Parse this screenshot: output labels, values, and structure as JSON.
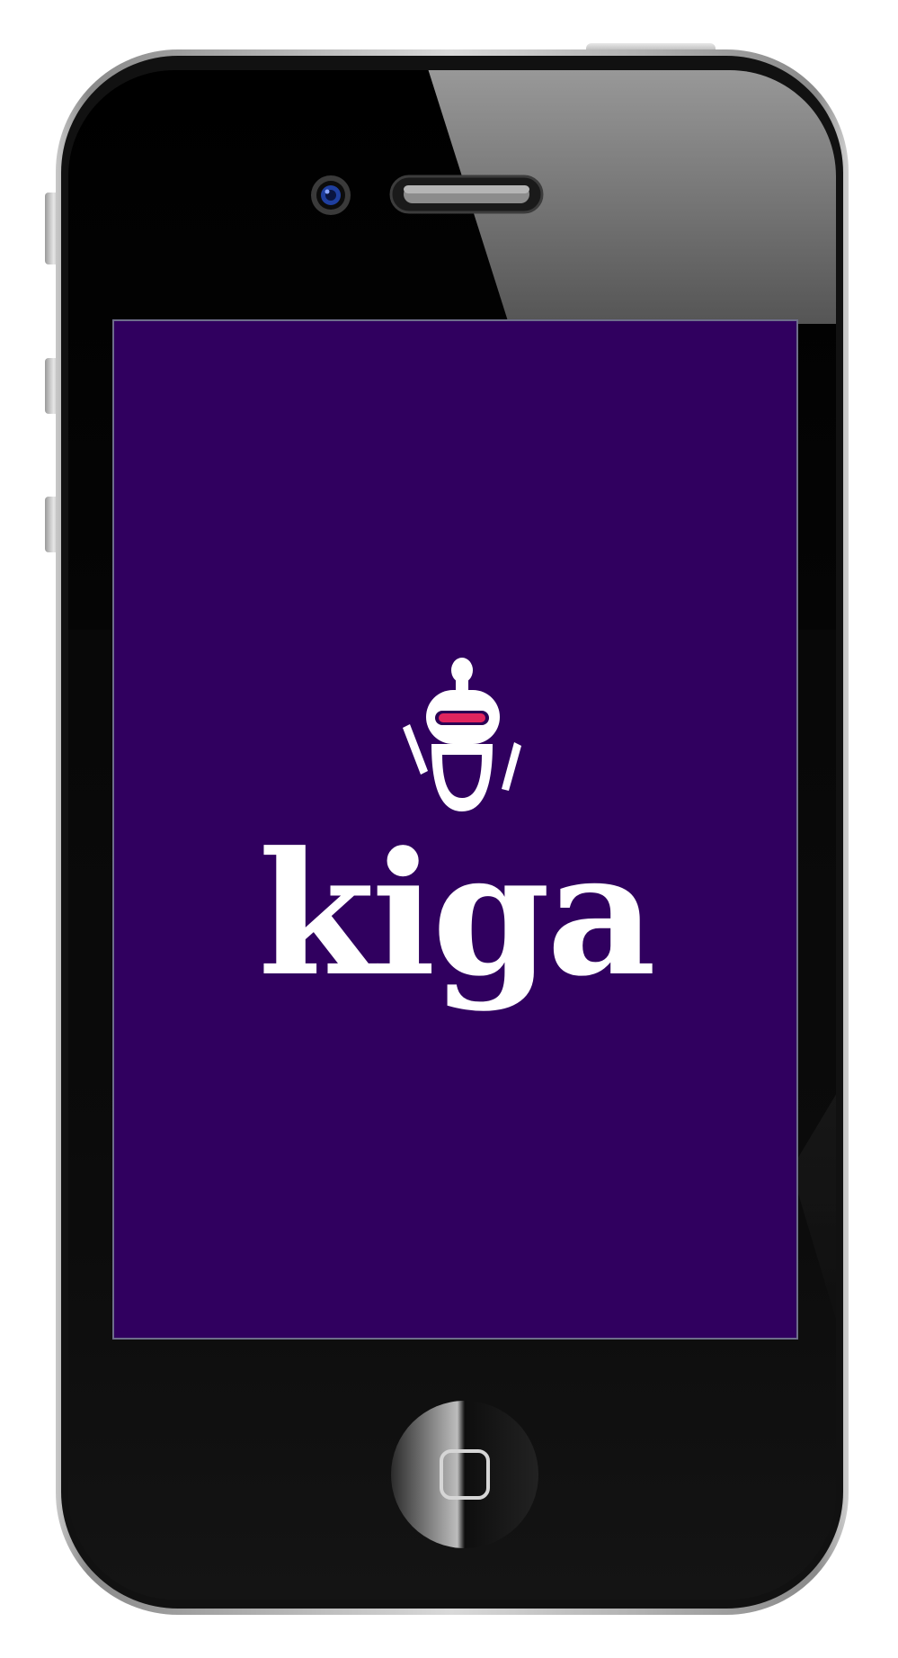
{
  "app": {
    "wordmark": "kiga",
    "logo_icon": "robot-icon",
    "background_color": "#30005f",
    "accent_color": "#e0245e",
    "logo_color": "#ffffff"
  },
  "device": {
    "camera_icon": "front-camera-icon",
    "speaker_icon": "earpiece-speaker-icon",
    "home_icon": "home-button-icon"
  }
}
